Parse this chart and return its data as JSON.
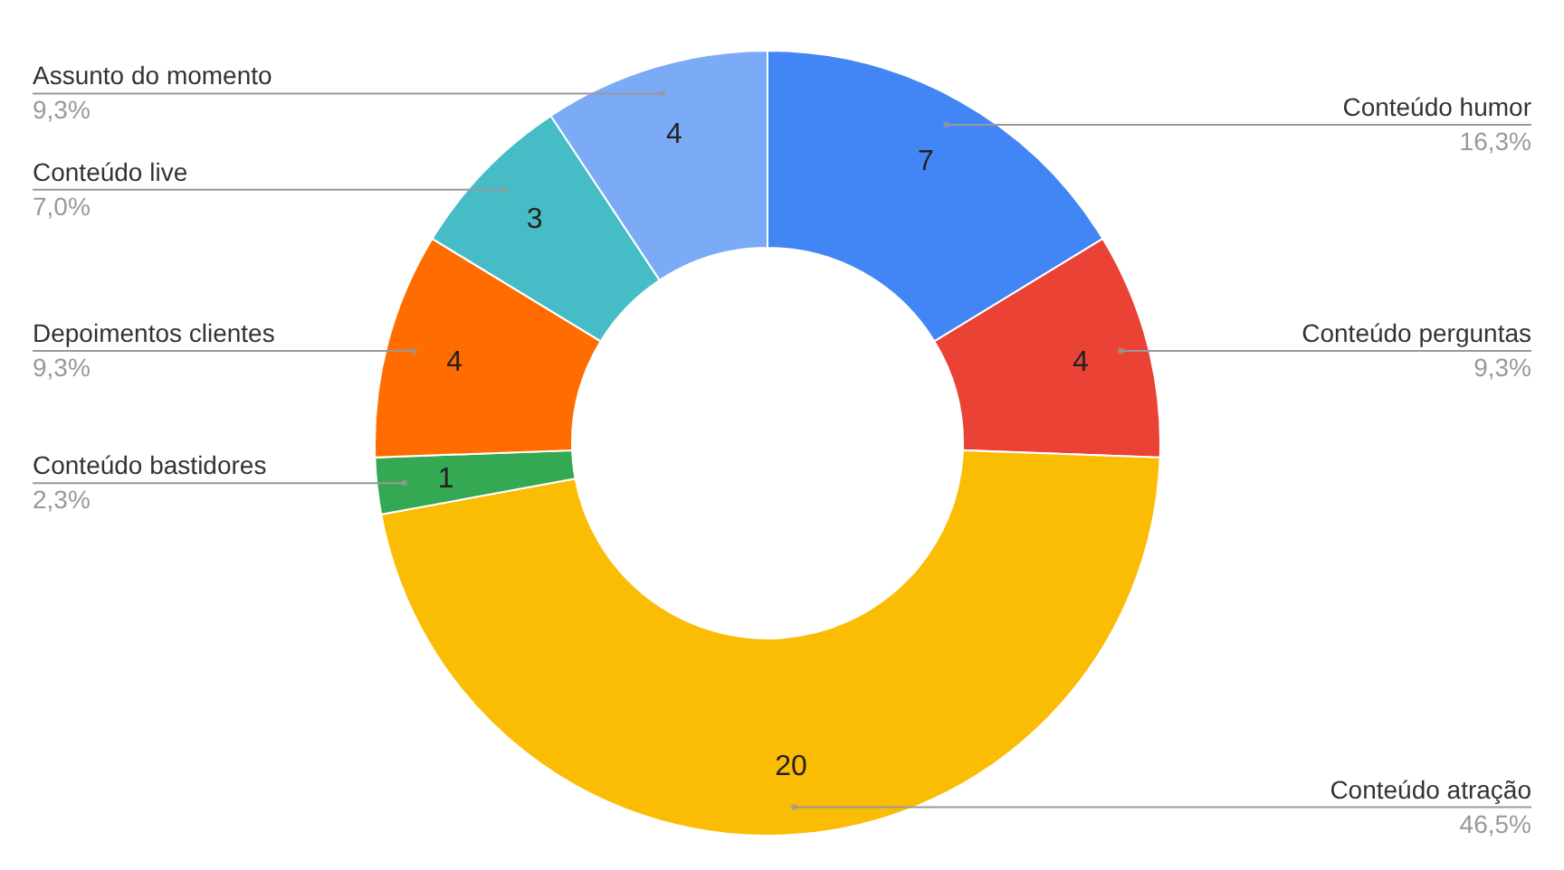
{
  "chart_data": {
    "type": "donut",
    "categories": [
      "Conteúdo humor",
      "Conteúdo perguntas",
      "Conteúdo atração",
      "Conteúdo bastidores",
      "Depoimentos clientes",
      "Conteúdo live",
      "Assunto do momento"
    ],
    "values": [
      7,
      4,
      20,
      1,
      4,
      3,
      4
    ],
    "colors": [
      "#4285f4",
      "#ea4335",
      "#fbbc04",
      "#34a853",
      "#ff6d01",
      "#46bdc6",
      "#7baaf7"
    ],
    "data_labels": true,
    "annotations": [
      "16,3%",
      "9,3%",
      "46,5%",
      "2,3%",
      "9,3%",
      "7,0%",
      "9,3%"
    ]
  }
}
